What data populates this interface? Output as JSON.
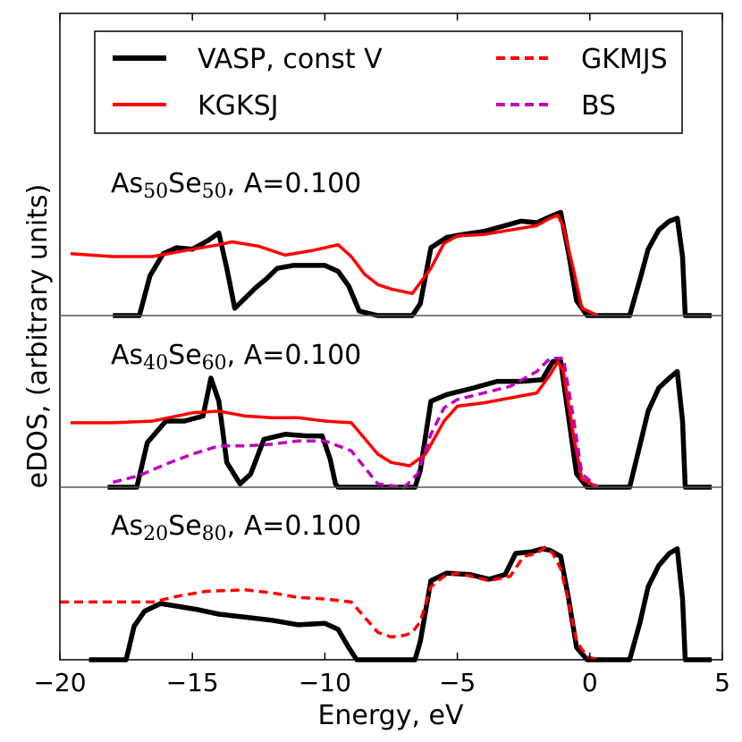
{
  "chart_data": {
    "type": "line",
    "xlabel": "Energy, eV",
    "ylabel": "eDOS, (arbitrary units)",
    "xlim": [
      -20,
      5
    ],
    "xticks": [
      "−20",
      "−15",
      "−10",
      "−5",
      "0",
      "5"
    ],
    "xtick_values": [
      -20,
      -15,
      -10,
      -5,
      0,
      5
    ],
    "legend": {
      "placement": "top",
      "entries": [
        {
          "label": "VASP, const V",
          "color": "#000000",
          "style": "solid"
        },
        {
          "label": "KGKSJ",
          "color": "#ff0000",
          "style": "solid"
        },
        {
          "label": "GKMJS",
          "color": "#ff0000",
          "style": "dashed"
        },
        {
          "label": "BS",
          "color": "#bf00bf",
          "style": "dashed"
        }
      ]
    },
    "panels": [
      {
        "label": {
          "elem1": "As",
          "sub1": "50",
          "elem2": "Se",
          "sub2": "50",
          "rest": ", A=0.100"
        },
        "ylim": [
          0,
          1
        ],
        "series": [
          {
            "name": "VASP, const V",
            "color": "#000000",
            "x": [
              -18.0,
              -17.0,
              -16.6,
              -16.1,
              -15.6,
              -15.0,
              -14.4,
              -14.0,
              -13.7,
              -13.4,
              -13.0,
              -12.6,
              -12.2,
              -11.8,
              -11.2,
              -10.5,
              -10.0,
              -9.5,
              -9.1,
              -8.7,
              -8.0,
              -6.7,
              -6.4,
              -6.0,
              -5.4,
              -4.8,
              -4.0,
              -3.2,
              -2.6,
              -2.0,
              -1.5,
              -1.1,
              -0.8,
              -0.5,
              -0.1,
              0.3,
              1.5,
              1.9,
              2.2,
              2.6,
              3.0,
              3.3,
              3.5,
              3.6,
              4.6
            ],
            "y": [
              0,
              0,
              0.27,
              0.42,
              0.46,
              0.45,
              0.51,
              0.56,
              0.32,
              0.05,
              0.12,
              0.19,
              0.25,
              0.32,
              0.34,
              0.34,
              0.34,
              0.3,
              0.2,
              0.03,
              0,
              0,
              0.08,
              0.46,
              0.53,
              0.55,
              0.57,
              0.61,
              0.64,
              0.63,
              0.67,
              0.7,
              0.42,
              0.1,
              0,
              0,
              0,
              0.25,
              0.45,
              0.58,
              0.64,
              0.66,
              0.4,
              0,
              0
            ]
          },
          {
            "name": "KGKSJ",
            "color": "#ff0000",
            "dashed": false,
            "x": [
              -19.6,
              -18.0,
              -16.5,
              -15.0,
              -14.0,
              -13.5,
              -12.5,
              -11.5,
              -10.5,
              -9.5,
              -9.0,
              -8.5,
              -8.0,
              -7.5,
              -6.7,
              -6.0,
              -5.5,
              -5.0,
              -4.0,
              -3.0,
              -2.0,
              -1.5,
              -1.2,
              -1.0,
              -0.6,
              -0.3,
              0.3
            ],
            "y": [
              0.42,
              0.4,
              0.4,
              0.45,
              0.48,
              0.5,
              0.47,
              0.41,
              0.44,
              0.48,
              0.4,
              0.28,
              0.21,
              0.18,
              0.15,
              0.32,
              0.49,
              0.54,
              0.55,
              0.58,
              0.61,
              0.66,
              0.68,
              0.6,
              0.3,
              0.05,
              0
            ]
          }
        ]
      },
      {
        "label": {
          "elem1": "As",
          "sub1": "40",
          "elem2": "Se",
          "sub2": "60",
          "rest": ", A=0.100"
        },
        "ylim": [
          0,
          1
        ],
        "series": [
          {
            "name": "VASP, const V",
            "color": "#000000",
            "x": [
              -18.2,
              -17.1,
              -16.7,
              -16.0,
              -15.3,
              -14.6,
              -14.3,
              -14.0,
              -13.7,
              -13.2,
              -12.8,
              -12.3,
              -11.5,
              -10.7,
              -10.1,
              -9.8,
              -9.6,
              -9.5,
              -6.6,
              -6.4,
              -6.0,
              -5.4,
              -4.4,
              -3.5,
              -2.6,
              -1.8,
              -1.4,
              -1.1,
              -0.8,
              -0.5,
              -0.1,
              0.3,
              1.5,
              1.9,
              2.2,
              2.6,
              3.0,
              3.3,
              3.5,
              3.6,
              4.6
            ],
            "y": [
              0,
              0,
              0.27,
              0.4,
              0.4,
              0.43,
              0.66,
              0.52,
              0.15,
              0.02,
              0.08,
              0.29,
              0.32,
              0.31,
              0.31,
              0.17,
              0.02,
              0,
              0,
              0.1,
              0.52,
              0.56,
              0.6,
              0.64,
              0.64,
              0.65,
              0.76,
              0.76,
              0.42,
              0.08,
              0,
              0,
              0,
              0.26,
              0.46,
              0.6,
              0.66,
              0.7,
              0.4,
              0,
              0
            ]
          },
          {
            "name": "KGKSJ",
            "color": "#ff0000",
            "dashed": false,
            "x": [
              -19.6,
              -18.0,
              -16.5,
              -15.0,
              -14.0,
              -13.0,
              -12.0,
              -11.0,
              -10.0,
              -9.0,
              -8.0,
              -7.5,
              -6.8,
              -6.2,
              -5.5,
              -5.0,
              -4.0,
              -3.0,
              -2.0,
              -1.5,
              -1.2,
              -1.0,
              -0.6,
              -0.3,
              0.3
            ],
            "y": [
              0.39,
              0.39,
              0.4,
              0.45,
              0.46,
              0.43,
              0.42,
              0.42,
              0.4,
              0.39,
              0.2,
              0.15,
              0.13,
              0.2,
              0.4,
              0.49,
              0.51,
              0.54,
              0.57,
              0.68,
              0.76,
              0.7,
              0.3,
              0.05,
              0
            ]
          },
          {
            "name": "BS",
            "color": "#bf00bf",
            "dashed": true,
            "x": [
              -18.0,
              -17.0,
              -16.0,
              -15.0,
              -14.0,
              -13.0,
              -12.0,
              -11.0,
              -10.0,
              -9.0,
              -8.0,
              -7.0,
              -6.5,
              -6.0,
              -5.5,
              -5.0,
              -4.0,
              -3.0,
              -2.0,
              -1.5,
              -1.0,
              -0.6,
              -0.3,
              0.3
            ],
            "y": [
              0.03,
              0.07,
              0.14,
              0.2,
              0.25,
              0.25,
              0.26,
              0.28,
              0.28,
              0.22,
              0.02,
              0,
              0.08,
              0.32,
              0.48,
              0.53,
              0.57,
              0.61,
              0.7,
              0.78,
              0.78,
              0.4,
              0.08,
              0
            ]
          }
        ]
      },
      {
        "label": {
          "elem1": "As",
          "sub1": "20",
          "elem2": "Se",
          "sub2": "80",
          "rest": ", A=0.100"
        },
        "ylim": [
          0,
          1
        ],
        "series": [
          {
            "name": "VASP, const V",
            "color": "#000000",
            "x": [
              -18.9,
              -17.5,
              -17.2,
              -16.8,
              -16.2,
              -15.5,
              -14.8,
              -14.0,
              -13.0,
              -12.0,
              -11.0,
              -10.0,
              -9.5,
              -9.1,
              -8.8,
              -6.6,
              -6.4,
              -6.0,
              -5.4,
              -4.5,
              -3.8,
              -3.2,
              -2.8,
              -2.2,
              -1.8,
              -1.5,
              -1.1,
              -0.8,
              -0.5,
              -0.1,
              0.3,
              1.5,
              1.9,
              2.2,
              2.6,
              3.0,
              3.3,
              3.5,
              3.6,
              4.6
            ],
            "y": [
              0,
              0,
              0.22,
              0.32,
              0.37,
              0.35,
              0.33,
              0.3,
              0.28,
              0.26,
              0.23,
              0.24,
              0.2,
              0.08,
              0,
              0,
              0.12,
              0.52,
              0.57,
              0.56,
              0.53,
              0.56,
              0.7,
              0.71,
              0.73,
              0.72,
              0.68,
              0.4,
              0.08,
              0,
              0,
              0,
              0.25,
              0.48,
              0.62,
              0.7,
              0.73,
              0.4,
              0,
              0
            ]
          },
          {
            "name": "GKMJS",
            "color": "#ff0000",
            "dashed": true,
            "x": [
              -20.0,
              -18.0,
              -16.5,
              -15.5,
              -14.5,
              -13.0,
              -12.0,
              -11.0,
              -10.0,
              -9.0,
              -8.5,
              -8.0,
              -7.5,
              -7.0,
              -6.7,
              -6.4,
              -6.0,
              -5.5,
              -5.0,
              -4.5,
              -3.8,
              -3.0,
              -2.5,
              -2.0,
              -1.7,
              -1.4,
              -1.1,
              -0.8,
              -0.5,
              -0.1,
              0.3
            ],
            "y": [
              0.38,
              0.38,
              0.38,
              0.42,
              0.45,
              0.46,
              0.44,
              0.41,
              0.4,
              0.38,
              0.28,
              0.18,
              0.15,
              0.16,
              0.18,
              0.25,
              0.48,
              0.55,
              0.57,
              0.55,
              0.52,
              0.55,
              0.68,
              0.7,
              0.74,
              0.7,
              0.6,
              0.38,
              0.12,
              0.02,
              0
            ]
          }
        ]
      }
    ]
  }
}
